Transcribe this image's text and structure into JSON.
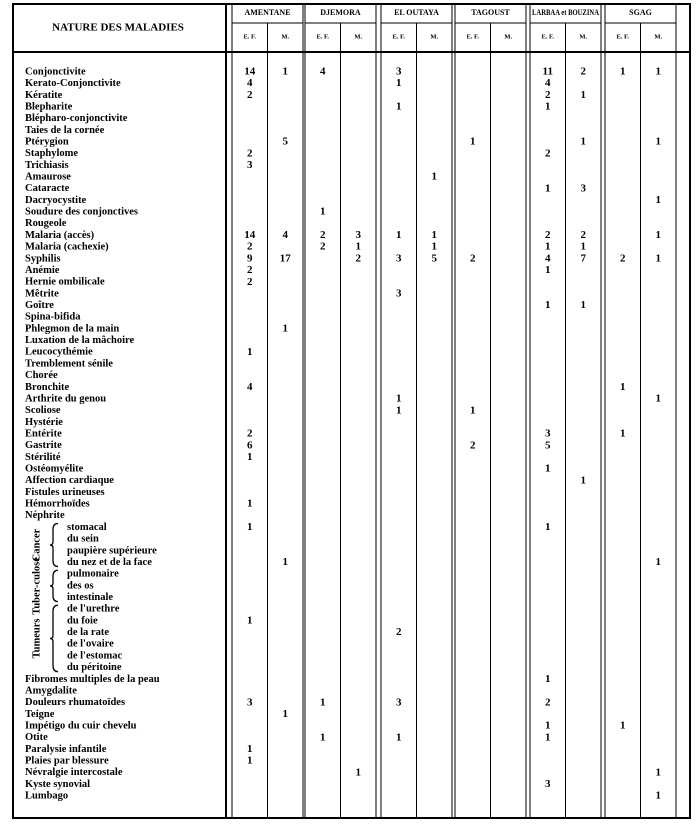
{
  "header": {
    "title": "NATURE DES MALADIES",
    "localities": [
      {
        "name": "AMENTANE",
        "subcols": [
          "E. F.",
          "M."
        ]
      },
      {
        "name": "DJEMORA",
        "subcols": [
          "E. F.",
          "M."
        ]
      },
      {
        "name": "EL OUTAYA",
        "subcols": [
          "E. F.",
          "M."
        ]
      },
      {
        "name": "TAGOUST",
        "subcols": [
          "E. F.",
          "M."
        ]
      },
      {
        "name": "LARBAA et BOUZINA",
        "subcols": [
          "E. F.",
          "M."
        ]
      },
      {
        "name": "SGAG",
        "subcols": [
          "E. F.",
          "M."
        ]
      }
    ]
  },
  "table": {
    "rows": [
      {
        "label": "Conjonctivite",
        "values": [
          14,
          1,
          4,
          null,
          3,
          null,
          null,
          null,
          11,
          2,
          1,
          1
        ]
      },
      {
        "label": "Kerato-Conjonctivite",
        "values": [
          4,
          null,
          null,
          null,
          1,
          null,
          null,
          null,
          4,
          null,
          null,
          null
        ]
      },
      {
        "label": "Kératite",
        "values": [
          2,
          null,
          null,
          null,
          null,
          null,
          null,
          null,
          2,
          1,
          null,
          null
        ]
      },
      {
        "label": "Blepharite",
        "values": [
          null,
          null,
          null,
          null,
          1,
          null,
          null,
          null,
          1,
          null,
          null,
          null
        ]
      },
      {
        "label": "Blépharo-conjonctivite",
        "values": [
          null,
          null,
          null,
          null,
          null,
          null,
          null,
          null,
          null,
          null,
          null,
          null
        ]
      },
      {
        "label": "Taies de la cornée",
        "values": [
          null,
          null,
          null,
          null,
          null,
          null,
          null,
          null,
          null,
          null,
          null,
          null
        ]
      },
      {
        "label": "Ptérygion",
        "values": [
          null,
          5,
          null,
          null,
          null,
          null,
          1,
          null,
          null,
          1,
          null,
          1
        ]
      },
      {
        "label": "Staphylome",
        "values": [
          2,
          null,
          null,
          null,
          null,
          null,
          null,
          null,
          2,
          null,
          null,
          null
        ]
      },
      {
        "label": "Trichiasis",
        "values": [
          3,
          null,
          null,
          null,
          null,
          null,
          null,
          null,
          null,
          null,
          null,
          null
        ]
      },
      {
        "label": "Amaurose",
        "values": [
          null,
          null,
          null,
          null,
          null,
          1,
          null,
          null,
          null,
          null,
          null,
          null
        ]
      },
      {
        "label": "Cataracte",
        "values": [
          null,
          null,
          null,
          null,
          null,
          null,
          null,
          null,
          1,
          3,
          null,
          null
        ]
      },
      {
        "label": "Dacryocystite",
        "values": [
          null,
          null,
          null,
          null,
          null,
          null,
          null,
          null,
          null,
          null,
          null,
          1
        ]
      },
      {
        "label": "Soudure des conjonctives",
        "values": [
          null,
          null,
          1,
          null,
          null,
          null,
          null,
          null,
          null,
          null,
          null,
          null
        ]
      },
      {
        "label": "Rougeole",
        "values": [
          null,
          null,
          null,
          null,
          null,
          null,
          null,
          null,
          null,
          null,
          null,
          null
        ]
      },
      {
        "label": "Malaria (accès)",
        "values": [
          14,
          4,
          2,
          3,
          1,
          1,
          null,
          null,
          2,
          2,
          null,
          1
        ]
      },
      {
        "label": "Malaria (cachexie)",
        "values": [
          2,
          null,
          2,
          1,
          null,
          1,
          null,
          null,
          1,
          1,
          null,
          null
        ]
      },
      {
        "label": "Syphilis",
        "values": [
          9,
          17,
          null,
          2,
          3,
          5,
          2,
          null,
          4,
          7,
          2,
          1
        ]
      },
      {
        "label": "Anémie",
        "values": [
          2,
          null,
          null,
          null,
          null,
          null,
          null,
          null,
          1,
          null,
          null,
          null
        ]
      },
      {
        "label": "Hernie ombilicale",
        "values": [
          2,
          null,
          null,
          null,
          null,
          null,
          null,
          null,
          null,
          null,
          null,
          null
        ]
      },
      {
        "label": "Mêtrite",
        "values": [
          null,
          null,
          null,
          null,
          3,
          null,
          null,
          null,
          null,
          null,
          null,
          null
        ]
      },
      {
        "label": "Goître",
        "values": [
          null,
          null,
          null,
          null,
          null,
          null,
          null,
          null,
          1,
          1,
          null,
          null
        ]
      },
      {
        "label": "Spina-bifida",
        "values": [
          null,
          null,
          null,
          null,
          null,
          null,
          null,
          null,
          null,
          null,
          null,
          null
        ]
      },
      {
        "label": "Phlegmon de la main",
        "values": [
          null,
          1,
          null,
          null,
          null,
          null,
          null,
          null,
          null,
          null,
          null,
          null
        ]
      },
      {
        "label": "Luxation de la mâchoire",
        "values": [
          null,
          null,
          null,
          null,
          null,
          null,
          null,
          null,
          null,
          null,
          null,
          null
        ]
      },
      {
        "label": "Leucocythémie",
        "values": [
          1,
          null,
          null,
          null,
          null,
          null,
          null,
          null,
          null,
          null,
          null,
          null
        ]
      },
      {
        "label": "Tremblement sénile",
        "values": [
          null,
          null,
          null,
          null,
          null,
          null,
          null,
          null,
          null,
          null,
          null,
          null
        ]
      },
      {
        "label": "Chorée",
        "values": [
          null,
          null,
          null,
          null,
          null,
          null,
          null,
          null,
          null,
          null,
          null,
          null
        ]
      },
      {
        "label": "Bronchite",
        "values": [
          4,
          null,
          null,
          null,
          null,
          null,
          null,
          null,
          null,
          null,
          1,
          null
        ]
      },
      {
        "label": "Arthrite du genou",
        "values": [
          null,
          null,
          null,
          null,
          1,
          null,
          null,
          null,
          null,
          null,
          null,
          1
        ]
      },
      {
        "label": "Scoliose",
        "values": [
          null,
          null,
          null,
          null,
          1,
          null,
          1,
          null,
          null,
          null,
          null,
          null
        ]
      },
      {
        "label": "Hystérie",
        "values": [
          null,
          null,
          null,
          null,
          null,
          null,
          null,
          null,
          null,
          null,
          null,
          null
        ]
      },
      {
        "label": "Entérite",
        "values": [
          2,
          null,
          null,
          null,
          null,
          null,
          null,
          null,
          3,
          null,
          1,
          null
        ]
      },
      {
        "label": "Gastrite",
        "values": [
          6,
          null,
          null,
          null,
          null,
          null,
          2,
          null,
          5,
          null,
          null,
          null
        ]
      },
      {
        "label": "Stérilité",
        "values": [
          1,
          null,
          null,
          null,
          null,
          null,
          null,
          null,
          null,
          null,
          null,
          null
        ]
      },
      {
        "label": "Ostéomyélite",
        "values": [
          null,
          null,
          null,
          null,
          null,
          null,
          null,
          null,
          1,
          null,
          null,
          null
        ]
      },
      {
        "label": "Affection cardiaque",
        "values": [
          null,
          null,
          null,
          null,
          null,
          null,
          null,
          null,
          null,
          1,
          null,
          null
        ]
      },
      {
        "label": "Fistules urineuses",
        "values": [
          null,
          null,
          null,
          null,
          null,
          null,
          null,
          null,
          null,
          null,
          null,
          null
        ]
      },
      {
        "label": "Hémorrhoïdes",
        "values": [
          1,
          null,
          null,
          null,
          null,
          null,
          null,
          null,
          null,
          null,
          null,
          null
        ]
      },
      {
        "label": "Néphrite",
        "values": [
          null,
          null,
          null,
          null,
          null,
          null,
          null,
          null,
          null,
          null,
          null,
          null
        ]
      },
      {
        "group": "Cancer",
        "items": [
          {
            "label": "stomacal",
            "values": [
              1,
              null,
              null,
              null,
              null,
              null,
              null,
              null,
              1,
              null,
              null,
              null
            ]
          },
          {
            "label": "du sein",
            "values": [
              null,
              null,
              null,
              null,
              null,
              null,
              null,
              null,
              null,
              null,
              null,
              null
            ]
          },
          {
            "label": "paupière supérieure",
            "values": [
              null,
              null,
              null,
              null,
              null,
              null,
              null,
              null,
              null,
              null,
              null,
              null
            ]
          },
          {
            "label": "du nez et de la face",
            "values": [
              null,
              1,
              null,
              null,
              null,
              null,
              null,
              null,
              null,
              null,
              null,
              1
            ]
          }
        ]
      },
      {
        "group": "Tuber-culose",
        "items": [
          {
            "label": "pulmonaire",
            "values": [
              null,
              null,
              null,
              null,
              null,
              null,
              null,
              null,
              null,
              null,
              null,
              null
            ]
          },
          {
            "label": "des os",
            "values": [
              null,
              null,
              null,
              null,
              null,
              null,
              null,
              null,
              null,
              null,
              null,
              null
            ]
          },
          {
            "label": "intestinale",
            "values": [
              null,
              null,
              null,
              null,
              null,
              null,
              null,
              null,
              null,
              null,
              null,
              null
            ]
          }
        ]
      },
      {
        "group": "Tumeurs",
        "items": [
          {
            "label": "de l'urethre",
            "values": [
              null,
              null,
              null,
              null,
              null,
              null,
              null,
              null,
              null,
              null,
              null,
              null
            ]
          },
          {
            "label": "du foie",
            "values": [
              1,
              null,
              null,
              null,
              null,
              null,
              null,
              null,
              null,
              null,
              null,
              null
            ]
          },
          {
            "label": "de la rate",
            "values": [
              null,
              null,
              null,
              null,
              2,
              null,
              null,
              null,
              null,
              null,
              null,
              null
            ]
          },
          {
            "label": "de l'ovaire",
            "values": [
              null,
              null,
              null,
              null,
              null,
              null,
              null,
              null,
              null,
              null,
              null,
              null
            ]
          },
          {
            "label": "de l'estomac",
            "values": [
              null,
              null,
              null,
              null,
              null,
              null,
              null,
              null,
              null,
              null,
              null,
              null
            ]
          },
          {
            "label": "du péritoine",
            "values": [
              null,
              null,
              null,
              null,
              null,
              null,
              null,
              null,
              null,
              null,
              null,
              null
            ]
          }
        ]
      },
      {
        "label": "Fibromes multiples de la peau",
        "values": [
          null,
          null,
          null,
          null,
          null,
          null,
          null,
          null,
          1,
          null,
          null,
          null
        ]
      },
      {
        "label": "Amygdalite",
        "values": [
          null,
          null,
          null,
          null,
          null,
          null,
          null,
          null,
          null,
          null,
          null,
          null
        ]
      },
      {
        "label": "Douleurs rhumatoïdes",
        "values": [
          3,
          null,
          1,
          null,
          3,
          null,
          null,
          null,
          2,
          null,
          null,
          null
        ]
      },
      {
        "label": "Teigne",
        "values": [
          null,
          1,
          null,
          null,
          null,
          null,
          null,
          null,
          null,
          null,
          null,
          null
        ]
      },
      {
        "label": "Impétigo du cuir chevelu",
        "values": [
          null,
          null,
          null,
          null,
          null,
          null,
          null,
          null,
          1,
          null,
          1,
          null
        ]
      },
      {
        "label": "Otite",
        "values": [
          null,
          null,
          1,
          null,
          1,
          null,
          null,
          null,
          1,
          null,
          null,
          null
        ]
      },
      {
        "label": "Paralysie infantile",
        "values": [
          1,
          null,
          null,
          null,
          null,
          null,
          null,
          null,
          null,
          null,
          null,
          null
        ]
      },
      {
        "label": "Plaies par blessure",
        "values": [
          1,
          null,
          null,
          null,
          null,
          null,
          null,
          null,
          null,
          null,
          null,
          null
        ]
      },
      {
        "label": "Névralgie intercostale",
        "values": [
          null,
          null,
          null,
          1,
          null,
          null,
          null,
          null,
          null,
          null,
          null,
          1
        ]
      },
      {
        "label": "Kyste synovial",
        "values": [
          null,
          null,
          null,
          null,
          null,
          null,
          null,
          null,
          3,
          null,
          null,
          null
        ]
      },
      {
        "label": "Lumbago",
        "values": [
          null,
          null,
          null,
          null,
          null,
          null,
          null,
          null,
          null,
          null,
          null,
          1
        ]
      }
    ]
  }
}
